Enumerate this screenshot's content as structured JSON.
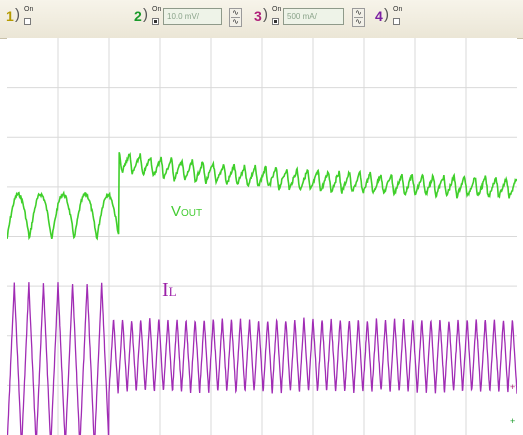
{
  "toolbar": {
    "channels": [
      {
        "number": "1",
        "on_label": "On",
        "checked": false,
        "color": "#b59a00"
      },
      {
        "number": "2",
        "on_label": "On",
        "checked": true,
        "color": "#1a9a2a",
        "scale": "10.0 mV/"
      },
      {
        "number": "3",
        "on_label": "On",
        "checked": true,
        "color": "#b0227a",
        "scale": "500 mA/"
      },
      {
        "number": "4",
        "on_label": "On",
        "checked": false,
        "color": "#7b1fa2"
      }
    ],
    "coupling_icon": "ac-dc-coupling-icon"
  },
  "screen": {
    "grid_divisions_x": 10,
    "grid_divisions_y": 8,
    "grid_color": "#d9d9d9",
    "labels": {
      "vout_main": "V",
      "vout_sub": "OUT",
      "il_main": "I",
      "il_sub": "L"
    },
    "markers": {
      "ch3_marker": "+",
      "ch2_marker": "+"
    }
  },
  "chart_data": {
    "type": "line",
    "title": "",
    "xlabel": "",
    "ylabel": "",
    "series": [
      {
        "name": "VOUT",
        "color": "#3fcf2a",
        "channel": "2",
        "scale": "10.0 mV/",
        "baseline_before_step_div": 3.6,
        "step_occurs_at_div": 2.2,
        "peak_after_step_div": 2.5,
        "settled_level_div": 3.1,
        "ripple_periods_before_step": 5,
        "ripple_amplitude_before_div": 0.6,
        "ripple_amplitude_after_div": 0.3,
        "ripple_periods_after_step": 38
      },
      {
        "name": "IL",
        "color": "#a02cb4",
        "channel": "3",
        "scale": "500 mA/",
        "center_before_step_div": 6.6,
        "peak_to_peak_before_step_div": 3.3,
        "periods_before_step": 7,
        "step_occurs_at_div": 2.0,
        "center_after_step_div": 6.4,
        "peak_to_peak_after_step_div": 1.5,
        "periods_after_step": 45
      }
    ]
  }
}
